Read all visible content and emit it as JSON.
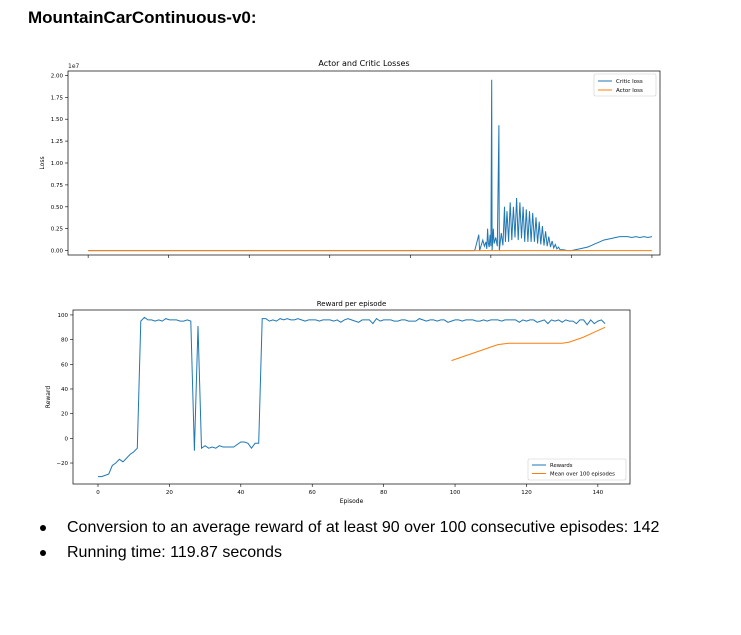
{
  "page": {
    "heading": "MountainCarContinuous-v0:"
  },
  "chart_data": [
    {
      "type": "line",
      "title": "Actor and Critic Losses",
      "xlabel": "",
      "ylabel": "Loss",
      "y_offset_label": "1e7",
      "ylim": [
        -0.05,
        2.05
      ],
      "yticks": [
        0.0,
        0.25,
        0.5,
        0.75,
        1.0,
        1.25,
        1.5,
        1.75,
        2.0
      ],
      "ytick_labels": [
        "0.00",
        "0.25",
        "0.50",
        "0.75",
        "1.00",
        "1.25",
        "1.50",
        "1.75",
        "2.00"
      ],
      "xticks_shown_without_labels": true,
      "legend_position": "top-right",
      "grid": false,
      "series": [
        {
          "name": "Critic loss",
          "color": "#1f77b4",
          "values": [
            [
              0,
              0
            ],
            [
              2000,
              0
            ],
            [
              3000,
              0
            ],
            [
              4000,
              0
            ],
            [
              4800,
              0
            ],
            [
              4850,
              0.18
            ],
            [
              4860,
              0
            ],
            [
              4900,
              0.12
            ],
            [
              4920,
              0.05
            ],
            [
              4940,
              0.1
            ],
            [
              4950,
              0.02
            ],
            [
              4960,
              0.25
            ],
            [
              4970,
              0.08
            ],
            [
              4980,
              0.04
            ],
            [
              4990,
              0.18
            ],
            [
              5000,
              0.05
            ],
            [
              5010,
              1.95
            ],
            [
              5015,
              0
            ],
            [
              5030,
              0.25
            ],
            [
              5040,
              0.08
            ],
            [
              5060,
              0.15
            ],
            [
              5080,
              0.05
            ],
            [
              5100,
              1.43
            ],
            [
              5105,
              0
            ],
            [
              5130,
              0.2
            ],
            [
              5150,
              0.06
            ],
            [
              5170,
              0.5
            ],
            [
              5180,
              0.1
            ],
            [
              5200,
              0.45
            ],
            [
              5220,
              0.1
            ],
            [
              5240,
              0.55
            ],
            [
              5260,
              0.12
            ],
            [
              5280,
              0.5
            ],
            [
              5300,
              0.15
            ],
            [
              5320,
              0.6
            ],
            [
              5340,
              0.12
            ],
            [
              5360,
              0.55
            ],
            [
              5380,
              0.14
            ],
            [
              5400,
              0.5
            ],
            [
              5420,
              0.1
            ],
            [
              5440,
              0.47
            ],
            [
              5460,
              0.1
            ],
            [
              5480,
              0.45
            ],
            [
              5500,
              0.1
            ],
            [
              5520,
              0.43
            ],
            [
              5540,
              0.1
            ],
            [
              5560,
              0.38
            ],
            [
              5580,
              0.08
            ],
            [
              5600,
              0.33
            ],
            [
              5620,
              0.07
            ],
            [
              5640,
              0.28
            ],
            [
              5660,
              0.06
            ],
            [
              5680,
              0.22
            ],
            [
              5700,
              0.05
            ],
            [
              5720,
              0.16
            ],
            [
              5740,
              0.04
            ],
            [
              5760,
              0.11
            ],
            [
              5780,
              0.03
            ],
            [
              5800,
              0.07
            ],
            [
              5820,
              0.02
            ],
            [
              5840,
              0.04
            ],
            [
              5860,
              0.01
            ],
            [
              5900,
              0.01
            ],
            [
              5950,
              0
            ],
            [
              6000,
              0
            ],
            [
              6050,
              0.01
            ],
            [
              6100,
              0.02
            ],
            [
              6150,
              0.03
            ],
            [
              6200,
              0.04
            ],
            [
              6250,
              0.06
            ],
            [
              6300,
              0.08
            ],
            [
              6350,
              0.1
            ],
            [
              6400,
              0.12
            ],
            [
              6450,
              0.13
            ],
            [
              6500,
              0.14
            ],
            [
              6550,
              0.15
            ],
            [
              6600,
              0.16
            ],
            [
              6650,
              0.16
            ],
            [
              6700,
              0.16
            ],
            [
              6750,
              0.15
            ],
            [
              6800,
              0.16
            ],
            [
              6850,
              0.15
            ],
            [
              6900,
              0.16
            ],
            [
              6950,
              0.15
            ],
            [
              7000,
              0.16
            ]
          ]
        },
        {
          "name": "Actor loss",
          "color": "#ff7f0e",
          "values": [
            [
              0,
              0.0
            ],
            [
              7000,
              0.0
            ]
          ]
        }
      ],
      "xlim": [
        -250,
        7100
      ]
    },
    {
      "type": "line",
      "title": "Reward per episode",
      "xlabel": "Episode",
      "ylabel": "Reward",
      "xlim": [
        -7,
        149
      ],
      "ylim": [
        -37,
        104
      ],
      "xticks": [
        0,
        20,
        40,
        60,
        80,
        100,
        120,
        140
      ],
      "xtick_labels": [
        "0",
        "20",
        "40",
        "60",
        "80",
        "100",
        "120",
        "140"
      ],
      "yticks": [
        -20,
        0,
        20,
        40,
        60,
        80,
        100
      ],
      "ytick_labels": [
        "−20",
        "0",
        "20",
        "40",
        "60",
        "80",
        "100"
      ],
      "legend_position": "lower right",
      "grid": false,
      "series": [
        {
          "name": "Rewards",
          "color": "#1f77b4",
          "x": [
            0,
            1,
            2,
            3,
            4,
            5,
            6,
            7,
            8,
            9,
            10,
            11,
            12,
            13,
            14,
            15,
            16,
            17,
            18,
            19,
            20,
            21,
            22,
            23,
            24,
            25,
            26,
            27,
            28,
            29,
            30,
            31,
            32,
            33,
            34,
            35,
            36,
            37,
            38,
            39,
            40,
            41,
            42,
            43,
            44,
            45,
            46,
            47,
            48,
            49,
            50,
            51,
            52,
            53,
            54,
            55,
            56,
            57,
            58,
            59,
            60,
            61,
            62,
            63,
            64,
            65,
            66,
            67,
            68,
            69,
            70,
            71,
            72,
            73,
            74,
            75,
            76,
            77,
            78,
            79,
            80,
            81,
            82,
            83,
            84,
            85,
            86,
            87,
            88,
            89,
            90,
            91,
            92,
            93,
            94,
            95,
            96,
            97,
            98,
            99,
            100,
            101,
            102,
            103,
            104,
            105,
            106,
            107,
            108,
            109,
            110,
            111,
            112,
            113,
            114,
            115,
            116,
            117,
            118,
            119,
            120,
            121,
            122,
            123,
            124,
            125,
            126,
            127,
            128,
            129,
            130,
            131,
            132,
            133,
            134,
            135,
            136,
            137,
            138,
            139,
            140,
            141,
            142
          ],
          "values": [
            -31,
            -31,
            -30,
            -29,
            -22,
            -20,
            -17,
            -19,
            -16,
            -13,
            -11,
            -8,
            95,
            98,
            96,
            96,
            95,
            96,
            95,
            97,
            96,
            96,
            96,
            95,
            95,
            96,
            95,
            -10,
            91,
            -8,
            -6,
            -8,
            -7,
            -8,
            -6,
            -7,
            -7,
            -7,
            -7,
            -5,
            -3,
            -3,
            -4,
            -8,
            -4,
            -4,
            97,
            97,
            95,
            96,
            95,
            97,
            96,
            97,
            96,
            96,
            97,
            96,
            95,
            96,
            96,
            96,
            95,
            96,
            96,
            96,
            95,
            96,
            94,
            96,
            97,
            96,
            95,
            94,
            96,
            96,
            96,
            93,
            97,
            95,
            96,
            96,
            96,
            95,
            95,
            96,
            96,
            95,
            95,
            95,
            97,
            96,
            95,
            96,
            96,
            95,
            96,
            96,
            94,
            95,
            96,
            96,
            95,
            96,
            96,
            96,
            95,
            95,
            96,
            95,
            96,
            96,
            96,
            95,
            96,
            96,
            96,
            96,
            94,
            96,
            95,
            96,
            96,
            94,
            95,
            96,
            93,
            96,
            95,
            96,
            94,
            96,
            95,
            95,
            93,
            96,
            96,
            92,
            96,
            93,
            95,
            96,
            93
          ]
        },
        {
          "name": "Mean over 100 episodes",
          "color": "#ff7f0e",
          "x": [
            99,
            102,
            106,
            110,
            112,
            115,
            118,
            122,
            126,
            129,
            130,
            132,
            136,
            139,
            142
          ],
          "values": [
            63,
            66,
            70,
            74,
            76,
            77,
            77,
            77,
            77,
            77,
            77,
            78,
            82,
            86,
            90
          ]
        }
      ]
    }
  ],
  "bullets": [
    "Conversion to an average reward of at least 90 over 100 consecutive episodes: 142",
    "Running time: 119.87 seconds"
  ]
}
